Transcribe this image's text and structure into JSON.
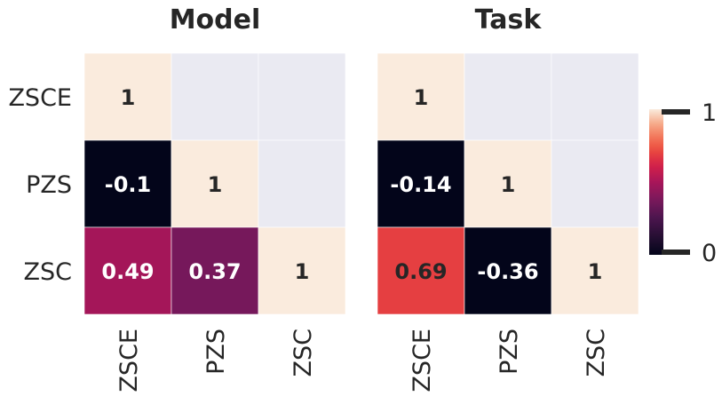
{
  "chart_data": [
    {
      "type": "heatmap",
      "title": "Model",
      "rows": [
        "ZSCE",
        "PZS",
        "ZSC"
      ],
      "cols": [
        "ZSCE",
        "PZS",
        "ZSC"
      ],
      "values": [
        [
          1,
          null,
          null
        ],
        [
          -0.1,
          1,
          null
        ],
        [
          0.49,
          0.37,
          1
        ]
      ],
      "labels": [
        [
          "1",
          "",
          ""
        ],
        [
          "-0.1",
          "1",
          ""
        ],
        [
          "0.49",
          "0.37",
          "1"
        ]
      ]
    },
    {
      "type": "heatmap",
      "title": "Task",
      "rows": [
        "ZSCE",
        "PZS",
        "ZSC"
      ],
      "cols": [
        "ZSCE",
        "PZS",
        "ZSC"
      ],
      "values": [
        [
          1,
          null,
          null
        ],
        [
          -0.14,
          1,
          null
        ],
        [
          0.69,
          -0.36,
          1
        ]
      ],
      "labels": [
        [
          "1",
          "",
          ""
        ],
        [
          "-0.14",
          "1",
          ""
        ],
        [
          "0.69",
          "-0.36",
          "1"
        ]
      ]
    }
  ],
  "colorbar": {
    "min": 0,
    "max": 1,
    "tick_labels": [
      "1",
      "0"
    ],
    "colormap": "rocket",
    "mask_color": "#eaeaf2"
  }
}
